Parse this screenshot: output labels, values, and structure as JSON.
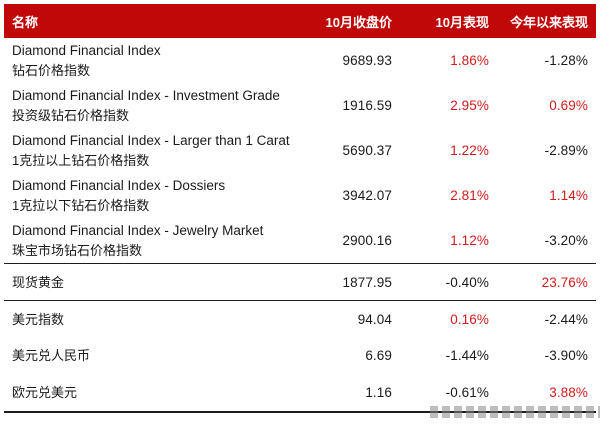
{
  "chart_data": {
    "type": "table",
    "title": "",
    "columns": [
      "名称",
      "10月收盘价",
      "10月表现",
      "今年以来表现"
    ],
    "rows": [
      {
        "name_en": "Diamond Financial Index",
        "name_cn": "钻石价格指数",
        "close": "9689.93",
        "oct": "1.86%",
        "ytd": "-1.28%"
      },
      {
        "name_en": "Diamond Financial Index - Investment Grade",
        "name_cn": "投资级钻石价格指数",
        "close": "1916.59",
        "oct": "2.95%",
        "ytd": "0.69%"
      },
      {
        "name_en": "Diamond Financial Index - Larger than 1 Carat",
        "name_cn": "1克拉以上钻石价格指数",
        "close": "5690.37",
        "oct": "1.22%",
        "ytd": "-2.89%"
      },
      {
        "name_en": "Diamond Financial Index - Dossiers",
        "name_cn": "1克拉以下钻石价格指数",
        "close": "3942.07",
        "oct": "2.81%",
        "ytd": "1.14%"
      },
      {
        "name_en": "Diamond Financial Index - Jewelry Market",
        "name_cn": "珠宝市场钻石价格指数",
        "close": "2900.16",
        "oct": "1.12%",
        "ytd": "-3.20%"
      },
      {
        "name": "现货黄金",
        "close": "1877.95",
        "oct": "-0.40%",
        "ytd": "23.76%",
        "sep_top": true
      },
      {
        "name": "美元指数",
        "close": "94.04",
        "oct": "0.16%",
        "ytd": "-2.44%",
        "sep_top": true
      },
      {
        "name": "美元兑人民币",
        "close": "6.69",
        "oct": "-1.44%",
        "ytd": "-3.90%"
      },
      {
        "name": "欧元兑美元",
        "close": "1.16",
        "oct": "-0.61%",
        "ytd": "3.88%"
      }
    ],
    "colors": {
      "header_bg": "#c10808",
      "positive_text": "#d31b1b",
      "negative_text": "#1a1a1a",
      "header_text": "#ffffff"
    },
    "legend": "positive values shown in red, negative values in black"
  }
}
